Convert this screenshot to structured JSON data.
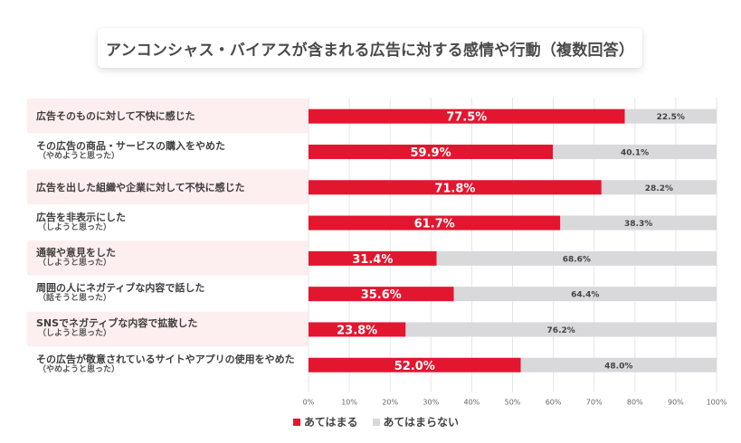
{
  "title": "アンコンシャス・バイアスが含まれる広告に対する感情や行動（複数回答）",
  "colors": {
    "yes": "#e3162f",
    "no": "#d9d8da",
    "band": "#fdeef0",
    "grid": "#e6e6e6",
    "yes_label": "#ffffff",
    "no_label": "#444444"
  },
  "chart_data": {
    "type": "bar",
    "orientation": "horizontal",
    "stacked": true,
    "title": "アンコンシャス・バイアスが含まれる広告に対する感情や行動（複数回答）",
    "xlabel": "",
    "ylabel": "",
    "xlim": [
      0,
      100
    ],
    "grid": true,
    "legend_position": "bottom",
    "x_ticks": [
      "0%",
      "10%",
      "20%",
      "30%",
      "40%",
      "50%",
      "60%",
      "70%",
      "80%",
      "90%",
      "100%"
    ],
    "categories": [
      {
        "main": "広告そのものに対して不快に感じた",
        "sub": ""
      },
      {
        "main": "その広告の商品・サービスの購入をやめた",
        "sub": "（やめようと思った）"
      },
      {
        "main": "広告を出した組織や企業に対して不快に感じた",
        "sub": ""
      },
      {
        "main": "広告を非表示にした",
        "sub": "（しようと思った）"
      },
      {
        "main": "通報や意見をした",
        "sub": "（しようと思った）"
      },
      {
        "main": "周囲の人にネガティブな内容で話した",
        "sub": "（話そうと思った）"
      },
      {
        "main": "SNSでネガティブな内容で拡散した",
        "sub": "（しようと思った）"
      },
      {
        "main": "その広告が敬意されているサイトやアプリの使用をやめた",
        "sub": "（やめようと思った）"
      }
    ],
    "series": [
      {
        "name": "あてはまる",
        "values": [
          77.5,
          59.9,
          71.8,
          61.7,
          31.4,
          35.6,
          23.8,
          52.0
        ]
      },
      {
        "name": "あてはまらない",
        "values": [
          22.5,
          40.1,
          28.2,
          38.3,
          68.6,
          64.4,
          76.2,
          48.0
        ]
      }
    ]
  },
  "legend": {
    "items": [
      "あてはまる",
      "あてはまらない"
    ]
  }
}
